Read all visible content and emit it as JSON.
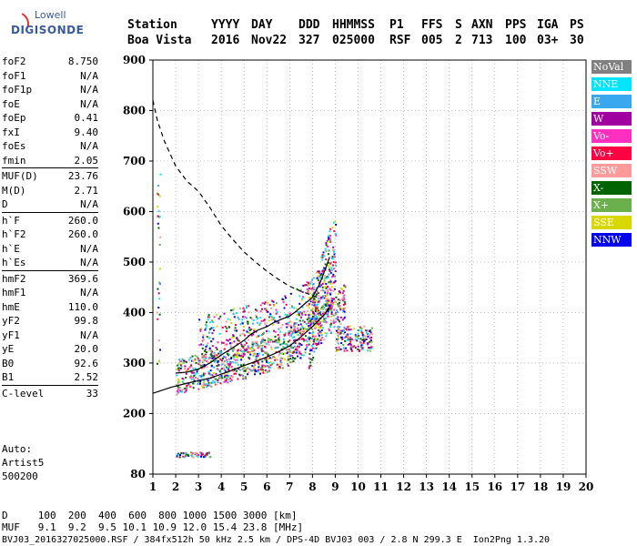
{
  "logo": {
    "line1": "Lowell",
    "line2": "DIGISONDE"
  },
  "header": {
    "row1": [
      "Station",
      "YYYY",
      "DAY",
      "DDD",
      "HHMMSS",
      "P1",
      "FFS",
      "S",
      "AXN",
      "PPS",
      "IGA",
      "PS"
    ],
    "row2": [
      "Boa Vista",
      "2016",
      "Nov22",
      "327",
      "025000",
      "RSF",
      "005",
      "2",
      "713",
      "100",
      "03+",
      "30"
    ]
  },
  "params": {
    "group1": [
      {
        "k": "foF2",
        "v": "8.750"
      },
      {
        "k": "foF1",
        "v": "N/A"
      },
      {
        "k": "foF1p",
        "v": "N/A"
      },
      {
        "k": "foE",
        "v": "N/A"
      },
      {
        "k": "foEp",
        "v": "0.41"
      },
      {
        "k": "fxI",
        "v": "9.40"
      },
      {
        "k": "foEs",
        "v": "N/A"
      },
      {
        "k": "fmin",
        "v": "2.05"
      }
    ],
    "group2": [
      {
        "k": "MUF(D)",
        "v": "23.76"
      },
      {
        "k": "M(D)",
        "v": "2.71"
      },
      {
        "k": "D",
        "v": "N/A"
      }
    ],
    "group3": [
      {
        "k": "h`F",
        "v": "260.0"
      },
      {
        "k": "h`F2",
        "v": "260.0"
      },
      {
        "k": "h`E",
        "v": "N/A"
      },
      {
        "k": "h`Es",
        "v": "N/A"
      }
    ],
    "group4": [
      {
        "k": "hmF2",
        "v": "369.6"
      },
      {
        "k": "hmF1",
        "v": "N/A"
      },
      {
        "k": "hmE",
        "v": "110.0"
      },
      {
        "k": "yF2",
        "v": "99.8"
      },
      {
        "k": "yF1",
        "v": "N/A"
      },
      {
        "k": "yE",
        "v": "20.0"
      },
      {
        "k": "B0",
        "v": "92.6"
      },
      {
        "k": "B1",
        "v": "2.52"
      }
    ],
    "group5": [
      {
        "k": "C-level",
        "v": "33"
      }
    ]
  },
  "auto": {
    "line1": "Auto:",
    "line2": "Artist5",
    "line3": "500200"
  },
  "legend": [
    {
      "label": "NoVal",
      "color": "#808080"
    },
    {
      "label": "NNE",
      "color": "#00e5ff"
    },
    {
      "label": "E",
      "color": "#3aa8ee"
    },
    {
      "label": "W",
      "color": "#a000a0"
    },
    {
      "label": "Vo-",
      "color": "#ff30c0"
    },
    {
      "label": "Vo+",
      "color": "#ff0040"
    },
    {
      "label": "SSW",
      "color": "#ff9a9a"
    },
    {
      "label": "X-",
      "color": "#006400"
    },
    {
      "label": "X+",
      "color": "#6ab04c"
    },
    {
      "label": "SSE",
      "color": "#d8d800"
    },
    {
      "label": "NNW",
      "color": "#0000ee"
    }
  ],
  "footer": {
    "line1": "D     100  200  400  600  800 1000 1500 3000 [km]",
    "line2": "MUF   9.1  9.2  9.5 10.1 10.9 12.0 15.4 23.8 [MHz]",
    "line3": "BVJ03_2016327025000.RSF / 384fx512h 50 kHz 2.5 km / DPS-4D BVJ03 003 / 2.8 N 299.3 E  Ion2Png 1.3.20"
  },
  "chart_data": {
    "type": "scatter",
    "xlim": [
      1,
      20
    ],
    "ylim": [
      80,
      900
    ],
    "xticks": [
      1,
      2,
      3,
      4,
      5,
      6,
      7,
      8,
      9,
      10,
      11,
      12,
      13,
      14,
      15,
      16,
      17,
      18,
      19,
      20
    ],
    "yticks": [
      80,
      200,
      300,
      400,
      500,
      600,
      700,
      800,
      900
    ],
    "grid": "dotted",
    "legend_position": "right",
    "series": [
      {
        "name": "trace",
        "style": "solid",
        "x": [
          1.0,
          1.8,
          2.5,
          3.0,
          3.5,
          4.0,
          4.5,
          5.0,
          5.5,
          6.0,
          6.5,
          7.0,
          7.5,
          8.0,
          8.5,
          8.75
        ],
        "y": [
          240,
          252,
          260,
          265,
          270,
          278,
          286,
          295,
          303,
          312,
          322,
          334,
          352,
          372,
          395,
          410
        ]
      },
      {
        "name": "trace2",
        "style": "solid",
        "x": [
          2.0,
          2.5,
          3.0,
          3.5,
          4.0,
          4.5,
          5.0,
          5.3,
          5.6,
          6.0,
          6.3,
          6.6,
          7.0,
          7.3,
          7.6,
          8.0,
          8.3,
          8.6,
          8.75
        ],
        "y": [
          280,
          282,
          288,
          300,
          316,
          330,
          345,
          357,
          365,
          372,
          380,
          386,
          393,
          403,
          415,
          430,
          455,
          490,
          510
        ]
      },
      {
        "name": "profile",
        "style": "dashed",
        "x": [
          1.0,
          1.2,
          1.5,
          2.0,
          2.5,
          3.0,
          3.5,
          4.0,
          4.5,
          5.0,
          5.5,
          6.0,
          6.5,
          7.0,
          7.5,
          8.0,
          8.3
        ],
        "y": [
          820,
          780,
          740,
          690,
          660,
          640,
          608,
          572,
          545,
          520,
          500,
          482,
          466,
          452,
          442,
          434,
          428
        ]
      }
    ]
  }
}
